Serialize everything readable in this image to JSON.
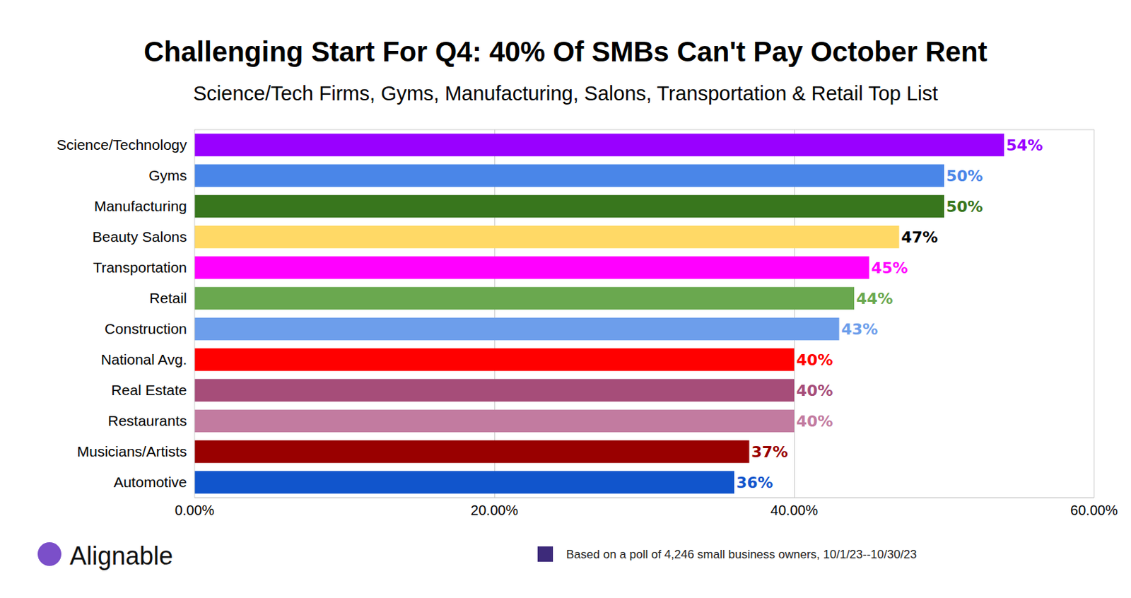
{
  "chart_data": {
    "type": "bar",
    "title": "Challenging Start For Q4: 40% Of SMBs Can't Pay October Rent",
    "subtitle": "Science/Tech Firms, Gyms, Manufacturing, Salons, Transportation & Retail Top List",
    "orientation": "horizontal",
    "categories": [
      "Science/Technology",
      "Gyms",
      "Manufacturing",
      "Beauty Salons",
      "Transportation",
      "Retail",
      "Construction",
      "National Avg.",
      "Real Estate",
      "Restaurants",
      "Musicians/Artists",
      "Automotive"
    ],
    "values": [
      54,
      50,
      50,
      47,
      45,
      44,
      43,
      40,
      40,
      40,
      37,
      36
    ],
    "value_labels": [
      "54%",
      "50%",
      "50%",
      "47%",
      "45%",
      "44%",
      "43%",
      "40%",
      "40%",
      "40%",
      "37%",
      "36%"
    ],
    "colors": [
      "#9900ff",
      "#4a86e8",
      "#38761d",
      "#ffd966",
      "#ff00ff",
      "#6aa84f",
      "#6d9eeb",
      "#ff0000",
      "#a64d79",
      "#c27ba0",
      "#990000",
      "#1155cc"
    ],
    "xlim": [
      0,
      60
    ],
    "xticks": [
      {
        "value": 0,
        "label": "0.00%"
      },
      {
        "value": 20,
        "label": "20.00%"
      },
      {
        "value": 40,
        "label": "40.00%"
      },
      {
        "value": 60,
        "label": "60.00%"
      }
    ],
    "grid": true,
    "data_labels": true,
    "annotations": [
      "Alignable",
      "Based on a poll of 4,246 small business owners, 10/1/23--10/30/23"
    ]
  }
}
